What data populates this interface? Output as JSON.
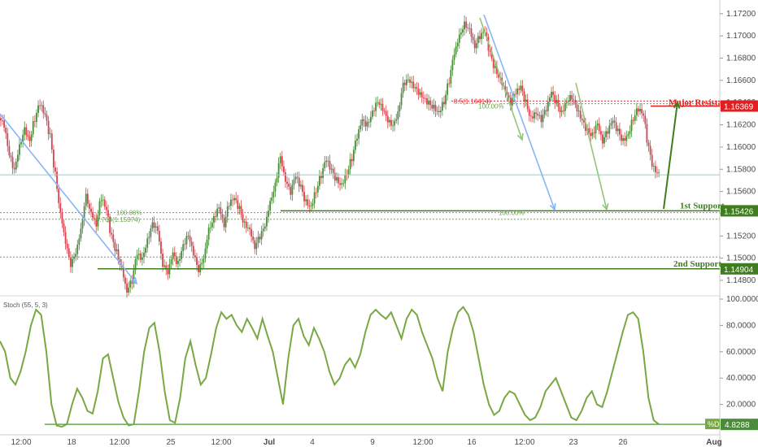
{
  "chart_data": [
    {
      "type": "candlestick",
      "ylim": [
        1.148,
        1.1725
      ],
      "y_ticks": [
        "1.17200",
        "1.17000",
        "1.16800",
        "1.16600",
        "1.16400",
        "1.16200",
        "1.16000",
        "1.15800",
        "1.15600",
        "1.15400",
        "1.15200",
        "1.15000",
        "1.14800"
      ],
      "x_ticks": [
        "12:00",
        "18",
        "12:00",
        "25",
        "12:00",
        "Jul",
        "4",
        "9",
        "12:00",
        "16",
        "12:00",
        "23",
        "26",
        "Aug"
      ],
      "last_price": 1.1575,
      "key_levels": [
        {
          "label": "Major Resistance",
          "value": "1.16369",
          "color": "#e02020"
        },
        {
          "label": "1st Support",
          "value": "1.15426",
          "color": "#3f7d1f"
        },
        {
          "label": "2nd Support",
          "value": "1.14904",
          "color": "#3f7d1f"
        }
      ],
      "fib_labels": [
        {
          "text": "0.5(1.16414)",
          "color": "#e02020"
        },
        {
          "text": "100.00%",
          "color": "#6aa84f"
        },
        {
          "text": "100.00%",
          "color": "#6aa84f"
        },
        {
          "text": "0.764(1.15374)",
          "color": "#6aa84f"
        },
        {
          "text": "100.00%",
          "color": "#6aa84f"
        }
      ],
      "candles_ohlc_approx": [
        1.162,
        1.1595,
        1.158,
        1.16,
        1.1615,
        1.1605,
        1.1625,
        1.164,
        1.163,
        1.161,
        1.1575,
        1.154,
        1.1515,
        1.1495,
        1.1505,
        1.1525,
        1.1555,
        1.154,
        1.153,
        1.1555,
        1.1545,
        1.152,
        1.1505,
        1.149,
        1.147,
        1.148,
        1.1505,
        1.15,
        1.1515,
        1.153,
        1.1525,
        1.1495,
        1.1488,
        1.1505,
        1.1495,
        1.151,
        1.152,
        1.1505,
        1.149,
        1.15,
        1.1525,
        1.1535,
        1.1545,
        1.153,
        1.155,
        1.1555,
        1.1545,
        1.153,
        1.1525,
        1.151,
        1.152,
        1.153,
        1.155,
        1.1565,
        1.159,
        1.157,
        1.156,
        1.1575,
        1.1565,
        1.155,
        1.1545,
        1.156,
        1.1575,
        1.159,
        1.158,
        1.157,
        1.1565,
        1.1575,
        1.159,
        1.161,
        1.1625,
        1.162,
        1.163,
        1.164,
        1.1635,
        1.1625,
        1.162,
        1.163,
        1.1655,
        1.166,
        1.1655,
        1.165,
        1.1645,
        1.164,
        1.1635,
        1.163,
        1.164,
        1.166,
        1.1685,
        1.17,
        1.171,
        1.1705,
        1.169,
        1.17,
        1.1705,
        1.1685,
        1.167,
        1.166,
        1.165,
        1.164,
        1.165,
        1.1655,
        1.164,
        1.1625,
        1.163,
        1.1625,
        1.1635,
        1.165,
        1.164,
        1.163,
        1.164,
        1.1645,
        1.1635,
        1.1625,
        1.1615,
        1.161,
        1.162,
        1.1605,
        1.1615,
        1.1625,
        1.1615,
        1.1605,
        1.161,
        1.1625,
        1.1635,
        1.163,
        1.16,
        1.158,
        1.1575
      ]
    },
    {
      "type": "line",
      "name": "Stoch (55, 5, 3)",
      "ylim": [
        0,
        100
      ],
      "y_ticks": [
        "100.0000",
        "80.0000",
        "60.0000",
        "40.0000",
        "20.0000"
      ],
      "last_value": "4.8288",
      "last_label": "%D",
      "values": [
        68,
        60,
        40,
        35,
        45,
        60,
        80,
        92,
        88,
        60,
        20,
        4,
        3,
        5,
        20,
        32,
        25,
        15,
        13,
        30,
        55,
        58,
        40,
        22,
        10,
        4,
        5,
        30,
        60,
        78,
        82,
        60,
        30,
        8,
        6,
        25,
        55,
        68,
        50,
        35,
        40,
        58,
        78,
        90,
        85,
        88,
        80,
        75,
        85,
        78,
        70,
        85,
        72,
        60,
        40,
        20,
        55,
        80,
        85,
        72,
        65,
        78,
        70,
        60,
        45,
        35,
        40,
        50,
        55,
        48,
        58,
        75,
        88,
        92,
        88,
        85,
        90,
        80,
        70,
        85,
        92,
        88,
        75,
        65,
        55,
        40,
        30,
        60,
        78,
        90,
        94,
        88,
        75,
        55,
        35,
        20,
        12,
        15,
        25,
        30,
        28,
        20,
        12,
        8,
        10,
        18,
        30,
        35,
        40,
        30,
        20,
        10,
        8,
        15,
        25,
        30,
        20,
        18,
        30,
        45,
        60,
        75,
        88,
        90,
        85,
        60,
        25,
        8,
        5
      ]
    }
  ]
}
